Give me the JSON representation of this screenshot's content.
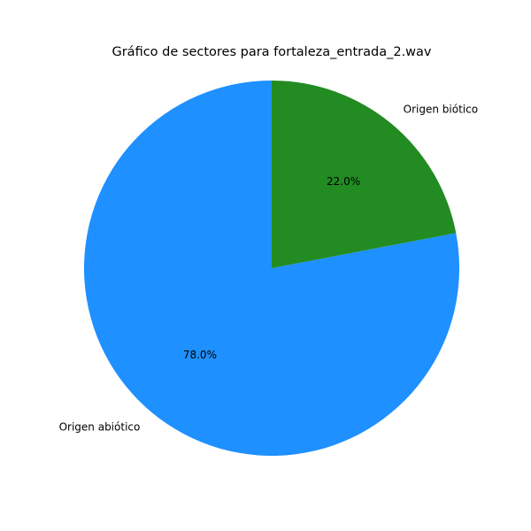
{
  "chart_data": {
    "type": "pie",
    "title": "Gráfico de sectores para fortaleza_entrada_2.wav",
    "categories": [
      "Origen abiótico",
      "Origen biótico"
    ],
    "values": [
      78.0,
      22.0
    ],
    "percent_labels": [
      "78.0%",
      "22.0%"
    ],
    "colors": [
      "#1e90ff",
      "#228b22"
    ],
    "start_angle_deg": 90,
    "direction": "counterclockwise",
    "legend": "none",
    "grid": false
  }
}
